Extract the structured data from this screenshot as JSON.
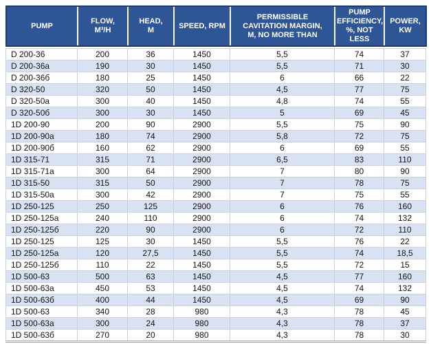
{
  "table": {
    "columns": [
      "PUMP",
      "FLOW,\nM³/H",
      "HEAD,\nM",
      "SPEED, RPM",
      "PERMISSIBLE\nCAVITATION MARGIN,\nM, NO MORE THAN",
      "PUMP\nEFFICIENCY,\n%, NOT LESS",
      "POWER,\nKW"
    ],
    "column_keys": [
      "pump",
      "flow",
      "head",
      "speed",
      "cavitation",
      "efficiency",
      "power"
    ],
    "rows": [
      [
        "D 200-36",
        "200",
        "36",
        "1450",
        "5,5",
        "74",
        "37"
      ],
      [
        "D 200-36a",
        "190",
        "30",
        "1450",
        "5,5",
        "71",
        "30"
      ],
      [
        "D 200-36б",
        "180",
        "25",
        "1450",
        "6",
        "66",
        "22"
      ],
      [
        "D 320-50",
        "320",
        "50",
        "1450",
        "4,5",
        "77",
        "75"
      ],
      [
        "D 320-50a",
        "300",
        "40",
        "1450",
        "4,8",
        "74",
        "55"
      ],
      [
        "D 320-50б",
        "300",
        "30",
        "1450",
        "5",
        "69",
        "45"
      ],
      [
        "1D 200-90",
        "200",
        "90",
        "2900",
        "5,5",
        "75",
        "90"
      ],
      [
        "1D 200-90a",
        "180",
        "74",
        "2900",
        "5,8",
        "72",
        "75"
      ],
      [
        "1D 200-90б",
        "160",
        "62",
        "2900",
        "6",
        "69",
        "55"
      ],
      [
        "1D 315-71",
        "315",
        "71",
        "2900",
        "6,5",
        "83",
        "110"
      ],
      [
        "1D 315-71a",
        "300",
        "64",
        "2900",
        "7",
        "80",
        "90"
      ],
      [
        "1D 315-50",
        "315",
        "50",
        "2900",
        "7",
        "78",
        "75"
      ],
      [
        "1D 315-50a",
        "300",
        "42",
        "2900",
        "7",
        "75",
        "55"
      ],
      [
        "1D 250-125",
        "250",
        "125",
        "2900",
        "6",
        "76",
        "160"
      ],
      [
        "1D 250-125a",
        "240",
        "110",
        "2900",
        "6",
        "74",
        "132"
      ],
      [
        "1D 250-125б",
        "220",
        "90",
        "2900",
        "6",
        "72",
        "110"
      ],
      [
        "1D 250-125",
        "125",
        "30",
        "1450",
        "5,5",
        "76",
        "22"
      ],
      [
        "1D 250-125a",
        "120",
        "27,5",
        "1450",
        "5,5",
        "74",
        "18,5"
      ],
      [
        "1D 250-125б",
        "110",
        "22",
        "1450",
        "5,5",
        "72",
        "15"
      ],
      [
        "1D 500-63",
        "500",
        "63",
        "1450",
        "4,5",
        "77",
        "160"
      ],
      [
        "1D 500-63a",
        "450",
        "53",
        "1450",
        "4,5",
        "74",
        "132"
      ],
      [
        "1D 500-63б",
        "400",
        "44",
        "1450",
        "4,5",
        "69",
        "90"
      ],
      [
        "1D 500-63",
        "340",
        "28",
        "980",
        "4,3",
        "78",
        "45"
      ],
      [
        "1D 500-63a",
        "300",
        "24",
        "980",
        "4,3",
        "78",
        "37"
      ],
      [
        "1D 500-63б",
        "270",
        "20",
        "980",
        "4,3",
        "78",
        "30"
      ]
    ],
    "colors": {
      "header_bg": "#2E5596",
      "header_border": "#1F3864",
      "header_text": "#FFFFFF",
      "row_stripe": "#D9E2F3",
      "grid_line": "#C9D0DC",
      "body_text": "#111111"
    }
  }
}
